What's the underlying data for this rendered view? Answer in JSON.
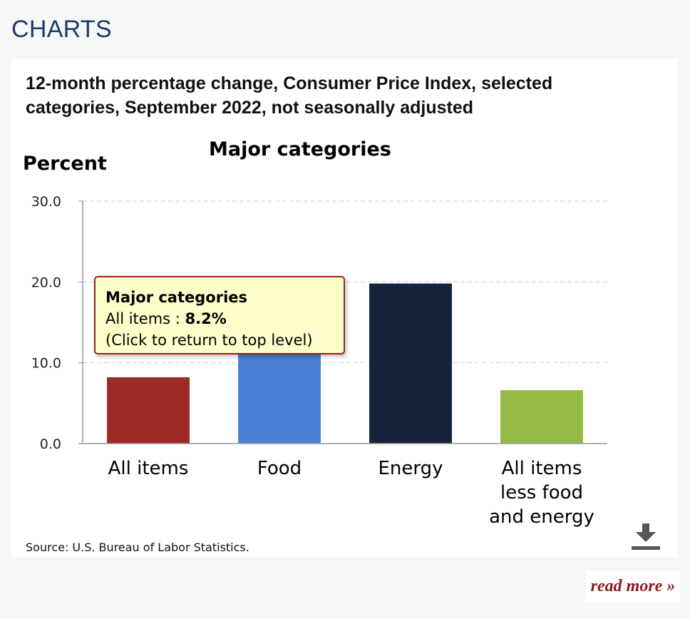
{
  "section_heading": "CHARTS",
  "chart_data": {
    "type": "bar",
    "title": "12-month percentage change, Consumer Price Index, selected categories, September 2022, not seasonally adjusted",
    "subtitle": "Major categories",
    "ylabel": "Percent",
    "xlabel": "",
    "ylim": [
      0,
      30
    ],
    "yticks": [
      "0.0",
      "10.0",
      "20.0",
      "30.0"
    ],
    "categories": [
      [
        "All items"
      ],
      [
        "Food"
      ],
      [
        "Energy"
      ],
      [
        "All items",
        "less food",
        "and energy"
      ]
    ],
    "values": [
      8.2,
      11.2,
      19.8,
      6.6
    ],
    "colors": [
      "#9e2a25",
      "#4a80d4",
      "#15233d",
      "#93bb44"
    ],
    "grid": true,
    "source": "Source: U.S. Bureau of Labor Statistics."
  },
  "tooltip": {
    "title": "Major categories",
    "label": "All items : ",
    "value": "8.2%",
    "hint": "(Click to return to top level)"
  },
  "download_icon": "download-icon",
  "read_more": "read more »"
}
